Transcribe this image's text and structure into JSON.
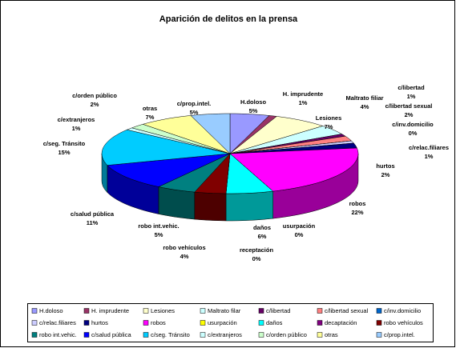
{
  "chart_data": {
    "type": "pie",
    "title": "Aparición de delitos en la prensa",
    "categories": [
      "H.doloso",
      "H. imprudente",
      "Lesiones",
      "Maltrato filiar",
      "c/libertad",
      "c/libertad sexual",
      "c/inv.domicilio",
      "c/relac.filiares",
      "hurtos",
      "robos",
      "usurpación",
      "daños",
      "receptación",
      "robo vehículos",
      "robo int.vehic.",
      "c/salud pública",
      "c/seg. Tránsito",
      "c/extranjeros",
      "c/orden público",
      "otras",
      "c/prop.intel."
    ],
    "values": [
      5,
      1,
      7,
      4,
      1,
      2,
      0,
      1,
      2,
      22,
      0,
      6,
      0,
      4,
      5,
      11,
      15,
      1,
      2,
      7,
      5
    ],
    "value_labels": [
      "5%",
      "1%",
      "7%",
      "4%",
      "1%",
      "2%",
      "0%",
      "1%",
      "2%",
      "22%",
      "0%",
      "6%",
      "0%",
      "4%",
      "5%",
      "11%",
      "15%",
      "1%",
      "2%",
      "7%",
      "5%"
    ],
    "colors": [
      "#9999FF",
      "#993366",
      "#FFFFCC",
      "#CCFFFF",
      "#660066",
      "#FF8080",
      "#0066CC",
      "#CCCCFF",
      "#000080",
      "#FF00FF",
      "#FFFF00",
      "#00FFFF",
      "#800080",
      "#800000",
      "#008080",
      "#0000FF",
      "#00CCFF",
      "#CCFFFF",
      "#CCFFCC",
      "#FFFF99",
      "#99CCFF"
    ],
    "legend_labels": [
      "H.doloso",
      "H. imprudente",
      "Lesiones",
      "Maltrato filar",
      "c/libertad",
      "c/libertad sexual",
      "c/inv.domicilio",
      "c/relac.filiares",
      "hurtos",
      "robos",
      "usurpación",
      "daños",
      "decaptación",
      "robo vehículos",
      "robo int.vehic.",
      "c/salud pública",
      "c/seg. Tránsito",
      "c/extranjeros",
      "c/orden público",
      "otras",
      "c/prop.intel."
    ]
  }
}
